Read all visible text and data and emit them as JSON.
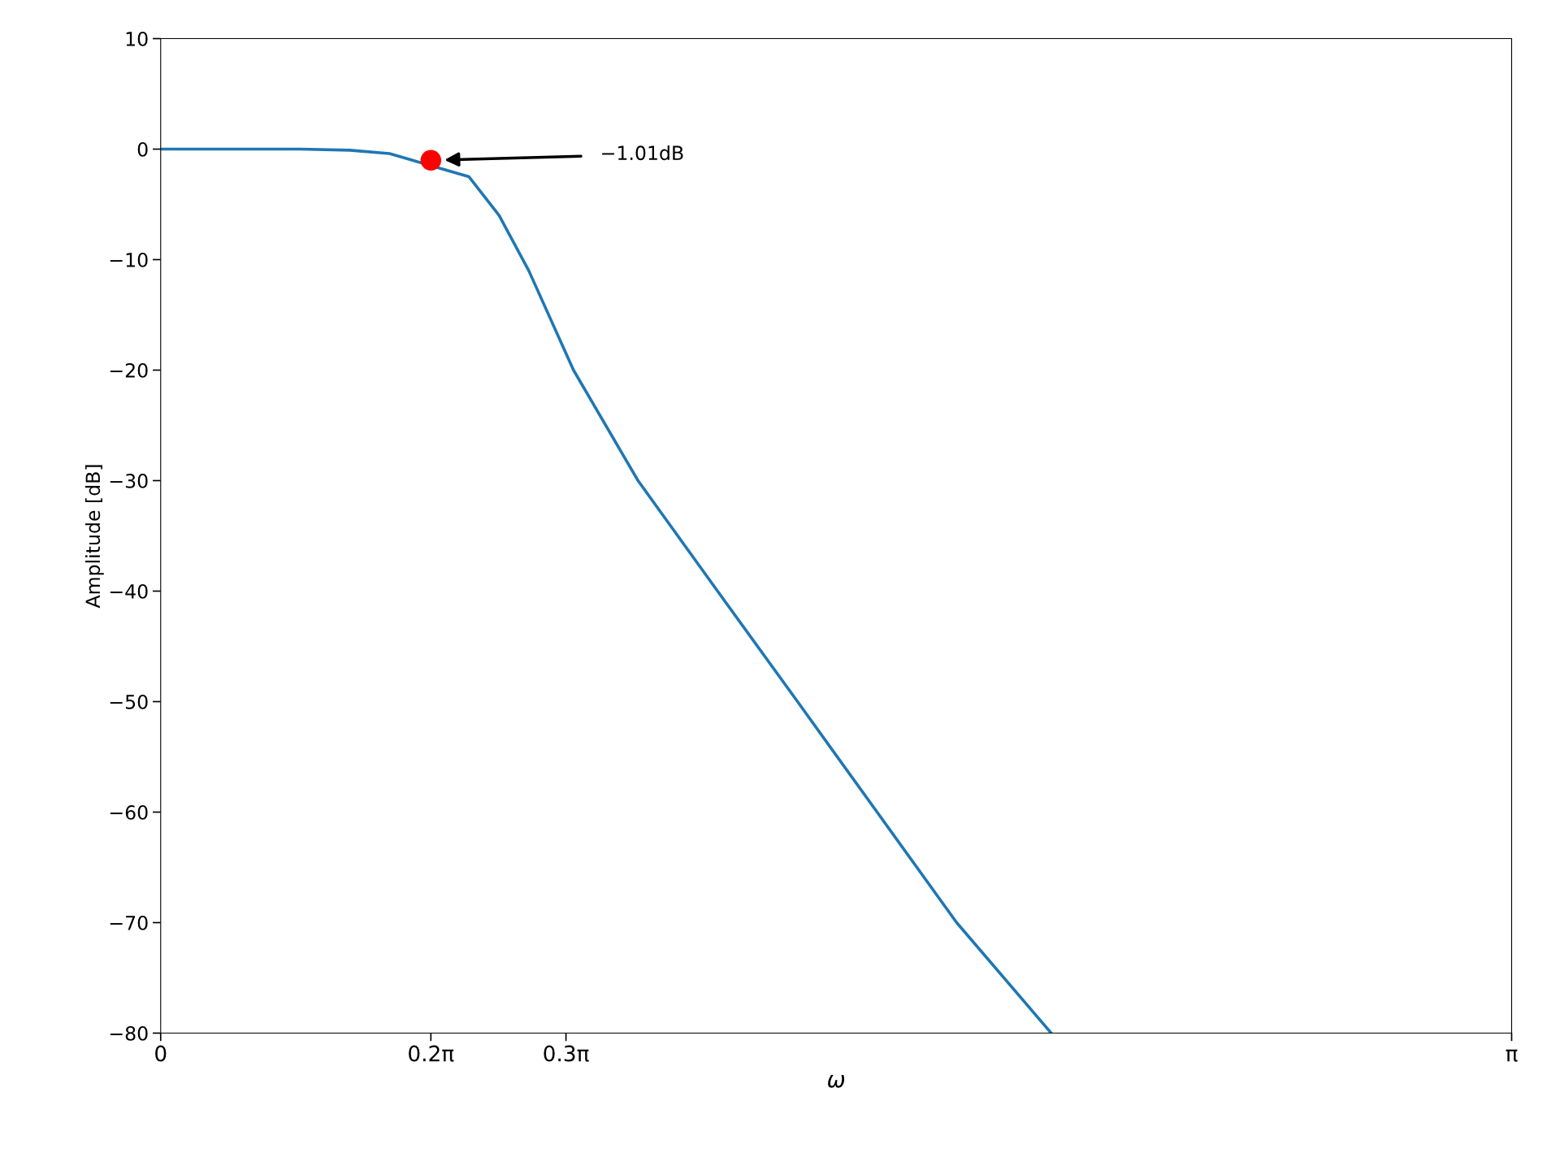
{
  "chart_data": {
    "type": "line",
    "xlabel": "ω",
    "ylabel": "Amplitude [dB]",
    "series": [
      {
        "color": "#1f77b4",
        "marker": "none",
        "x": [
          0,
          0.324,
          0.44,
          0.532,
          0.717,
          0.787,
          0.856,
          0.96,
          1.11,
          1.295,
          1.481,
          1.666,
          1.851,
          2.071
        ],
        "values": [
          0,
          0,
          -0.1,
          -0.4,
          -2.5,
          -6,
          -11,
          -20,
          -30,
          -40,
          -50,
          -60,
          -70,
          -80
        ]
      },
      {
        "type": "scatter",
        "color": "#ff0000",
        "marker": "circle",
        "x": [
          0.6283
        ],
        "values": [
          -1.01
        ]
      }
    ],
    "annotations": [
      "−1.01dB"
    ],
    "xlim": [
      0,
      3.1416
    ],
    "xticks": [
      0,
      {
        "value": 0.6283,
        "label": "0.2π"
      },
      {
        "value": 0.9425,
        "label": "0.3π"
      },
      {
        "value": 3.1416,
        "label": "π"
      }
    ],
    "ylim": [
      -80,
      10
    ],
    "yticks": [
      -80,
      -70,
      -60,
      -50,
      -40,
      -30,
      -20,
      -10,
      0,
      10
    ],
    "grid": false,
    "legend": false
  }
}
